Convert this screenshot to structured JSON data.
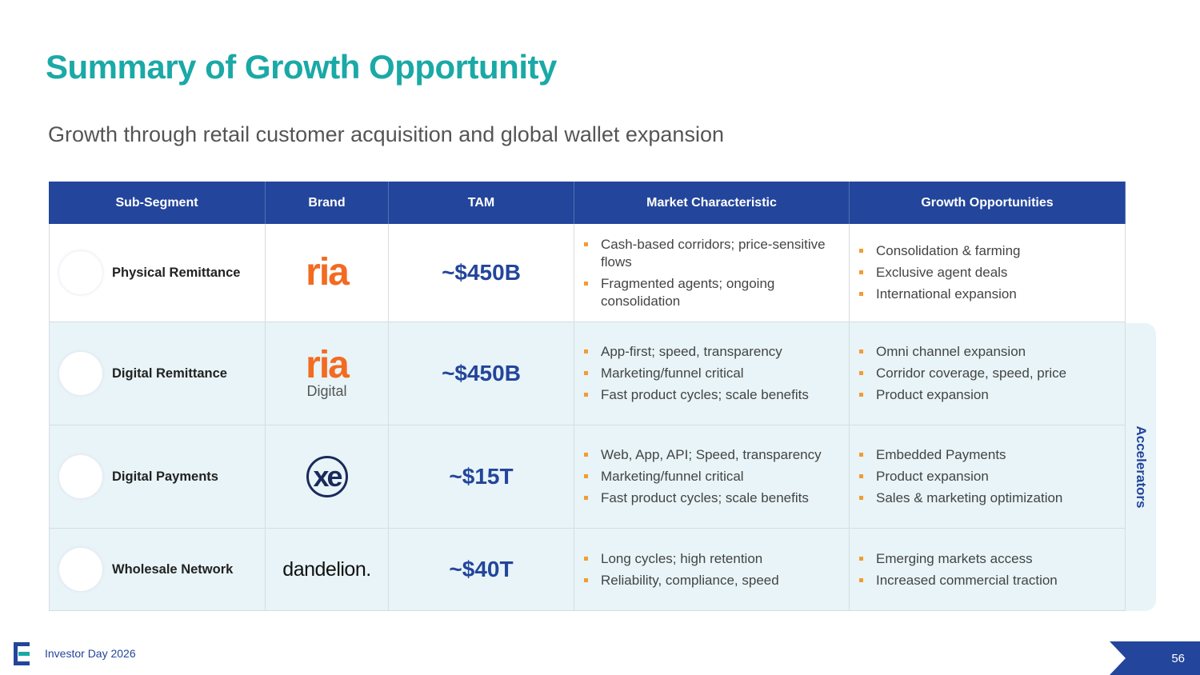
{
  "header": {
    "title": "Summary of Growth Opportunity",
    "subtitle": "Growth through retail customer acquisition and global wallet expansion"
  },
  "table": {
    "columns": [
      "Sub-Segment",
      "Brand",
      "TAM",
      "Market Characteristic",
      "Growth Opportunities"
    ],
    "rows": [
      {
        "segment": "Physical Remittance",
        "brand": {
          "logo": "ria"
        },
        "tam": "~$450B",
        "market": [
          "Cash-based corridors; price-sensitive flows",
          "Fragmented agents; ongoing consolidation"
        ],
        "growth": [
          "Consolidation & farming",
          "Exclusive agent deals",
          "International expansion"
        ]
      },
      {
        "segment": "Digital Remittance",
        "brand": {
          "logo": "ria",
          "caption": "Digital"
        },
        "tam": "~$450B",
        "market": [
          "App-first; speed, transparency",
          "Marketing/funnel critical",
          "Fast product cycles; scale benefits"
        ],
        "growth": [
          "Omni channel expansion",
          "Corridor coverage, speed, price",
          "Product expansion"
        ]
      },
      {
        "segment": "Digital Payments",
        "brand": {
          "logo": "xe"
        },
        "tam": "~$15T",
        "market": [
          "Web, App, API; Speed, transparency",
          "Marketing/funnel critical",
          "Fast product cycles; scale benefits"
        ],
        "growth": [
          "Embedded Payments",
          "Product expansion",
          "Sales & marketing optimization"
        ]
      },
      {
        "segment": "Wholesale Network",
        "brand": {
          "logo": "dandelion."
        },
        "tam": "~$40T",
        "market": [
          "Long cycles; high retention",
          "Reliability, compliance, speed"
        ],
        "growth": [
          "Emerging markets access",
          "Increased commercial traction"
        ]
      }
    ]
  },
  "side_label": "Accelerators",
  "footer": {
    "text": "Investor Day 2026",
    "page": "56"
  }
}
